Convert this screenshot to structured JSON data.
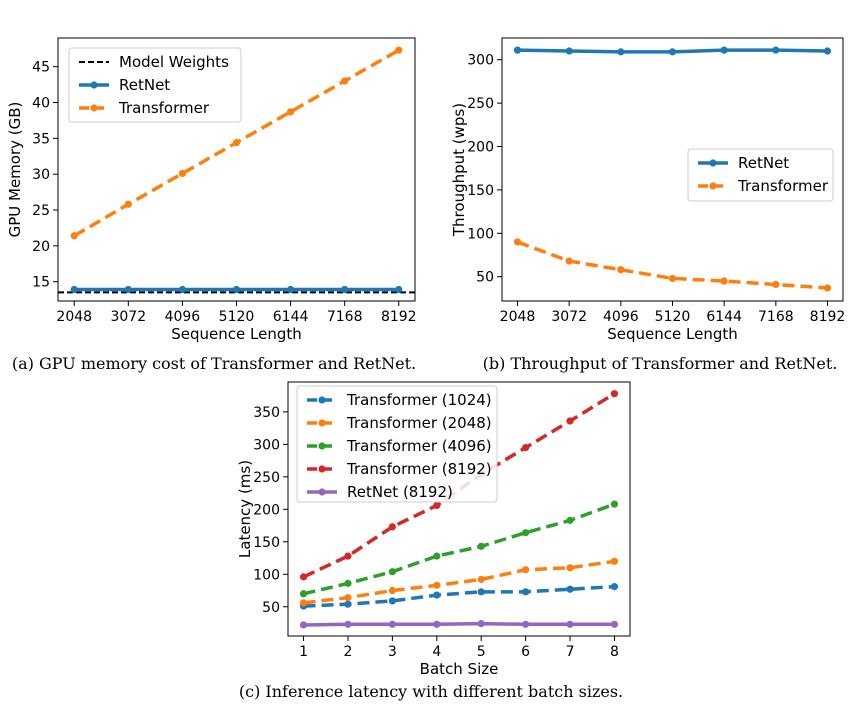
{
  "chart_data": [
    {
      "id": "a",
      "type": "line",
      "xlabel": "Sequence Length",
      "ylabel": "GPU Memory (GB)",
      "x": [
        2048,
        3072,
        4096,
        5120,
        6144,
        7168,
        8192
      ],
      "x_tick_labels": [
        "2048",
        "3072",
        "4096",
        "5120",
        "6144",
        "7168",
        "8192"
      ],
      "ylim": [
        12.3,
        49
      ],
      "y_ticks": [
        15,
        20,
        25,
        30,
        35,
        40,
        45
      ],
      "legend_position": "top-left",
      "reference_line": {
        "name": "Model Weights",
        "value": 13.5,
        "color": "#000000",
        "style": "dashed"
      },
      "series": [
        {
          "name": "RetNet",
          "color": "#1f77b4",
          "style": "solid",
          "values": [
            13.9,
            13.9,
            13.9,
            13.9,
            13.9,
            13.9,
            13.9
          ]
        },
        {
          "name": "Transformer",
          "color": "#ff7f0e",
          "style": "dashed",
          "values": [
            21.4,
            25.8,
            30.1,
            34.4,
            38.7,
            43.0,
            47.3
          ]
        }
      ],
      "caption": "(a) GPU memory cost of Transformer and RetNet."
    },
    {
      "id": "b",
      "type": "line",
      "xlabel": "Sequence Length",
      "ylabel": "Throughput (wps)",
      "x": [
        2048,
        3072,
        4096,
        5120,
        6144,
        7168,
        8192
      ],
      "x_tick_labels": [
        "2048",
        "3072",
        "4096",
        "5120",
        "6144",
        "7168",
        "8192"
      ],
      "ylim": [
        22,
        325
      ],
      "y_ticks": [
        50,
        100,
        150,
        200,
        250,
        300
      ],
      "legend_position": "center-right",
      "series": [
        {
          "name": "RetNet",
          "color": "#1f77b4",
          "style": "solid",
          "values": [
            311,
            310,
            309,
            309,
            311,
            311,
            310
          ]
        },
        {
          "name": "Transformer",
          "color": "#ff7f0e",
          "style": "dashed",
          "values": [
            90,
            68,
            58,
            48,
            45,
            41,
            37
          ]
        }
      ],
      "caption": "(b) Throughput of Transformer and RetNet."
    },
    {
      "id": "c",
      "type": "line",
      "xlabel": "Batch Size",
      "ylabel": "Latency (ms)",
      "x": [
        1,
        2,
        3,
        4,
        5,
        6,
        7,
        8
      ],
      "x_tick_labels": [
        "1",
        "2",
        "3",
        "4",
        "5",
        "6",
        "7",
        "8"
      ],
      "ylim": [
        5,
        396
      ],
      "y_ticks": [
        50,
        100,
        150,
        200,
        250,
        300,
        350
      ],
      "legend_position": "top-left",
      "series": [
        {
          "name": "Transformer (1024)",
          "color": "#1f77b4",
          "style": "dashed",
          "values": [
            51,
            54,
            59,
            68,
            73,
            73,
            77,
            81
          ]
        },
        {
          "name": "Transformer (2048)",
          "color": "#ff7f0e",
          "style": "dashed",
          "values": [
            56,
            64,
            75,
            83,
            92,
            107,
            110,
            120
          ]
        },
        {
          "name": "Transformer (4096)",
          "color": "#2ca02c",
          "style": "dashed",
          "values": [
            70,
            86,
            104,
            128,
            143,
            164,
            183,
            208
          ]
        },
        {
          "name": "Transformer (8192)",
          "color": "#d62728",
          "style": "dashed",
          "values": [
            96,
            128,
            173,
            206,
            254,
            295,
            336,
            378
          ]
        },
        {
          "name": "RetNet (8192)",
          "color": "#9467bd",
          "style": "solid",
          "values": [
            22,
            23,
            23,
            23,
            24,
            23,
            23,
            23
          ]
        }
      ],
      "caption": "(c) Inference latency with different batch sizes."
    }
  ]
}
